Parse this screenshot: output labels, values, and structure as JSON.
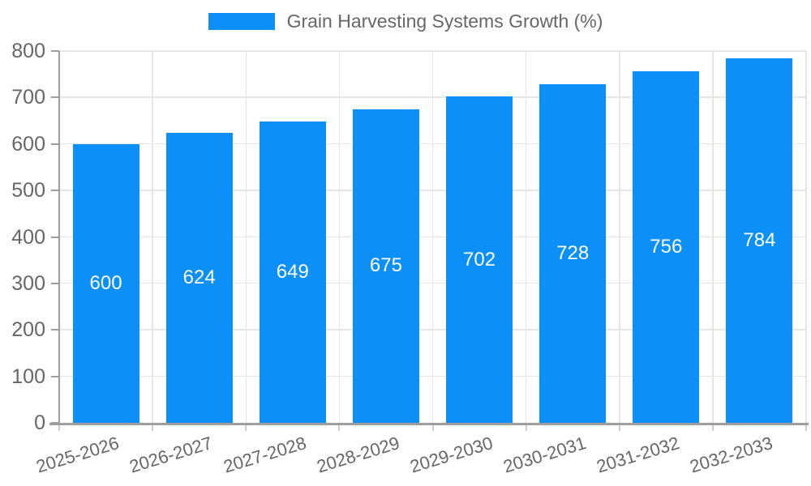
{
  "chart_data": {
    "type": "bar",
    "title": "Grain Harvesting Systems Growth (%)",
    "categories": [
      "2025-2026",
      "2026-2027",
      "2027-2028",
      "2028-2029",
      "2029-2030",
      "2030-2031",
      "2031-2032",
      "2032-2033"
    ],
    "values": [
      600,
      624,
      649,
      675,
      702,
      728,
      756,
      784
    ],
    "value_labels": [
      "600",
      "624",
      "649",
      "675",
      "702",
      "728",
      "756",
      "784"
    ],
    "ylim": [
      0,
      800
    ],
    "yticks": [
      0,
      100,
      200,
      300,
      400,
      500,
      600,
      700,
      800
    ],
    "ytick_labels": [
      "0",
      "100",
      "200",
      "300",
      "400",
      "500",
      "600",
      "700",
      "800"
    ],
    "grid": true,
    "legend_position": "top",
    "x_label_rotation_deg": -17,
    "colors": {
      "bar": "#0d8ff8",
      "bar_value_text": "#ffffff",
      "axis_text": "#666666",
      "grid_line": "#e6e6e6",
      "axis_line": "#9e9e9e",
      "x_tick_stub": "#cccccc",
      "background": "#ffffff"
    }
  }
}
